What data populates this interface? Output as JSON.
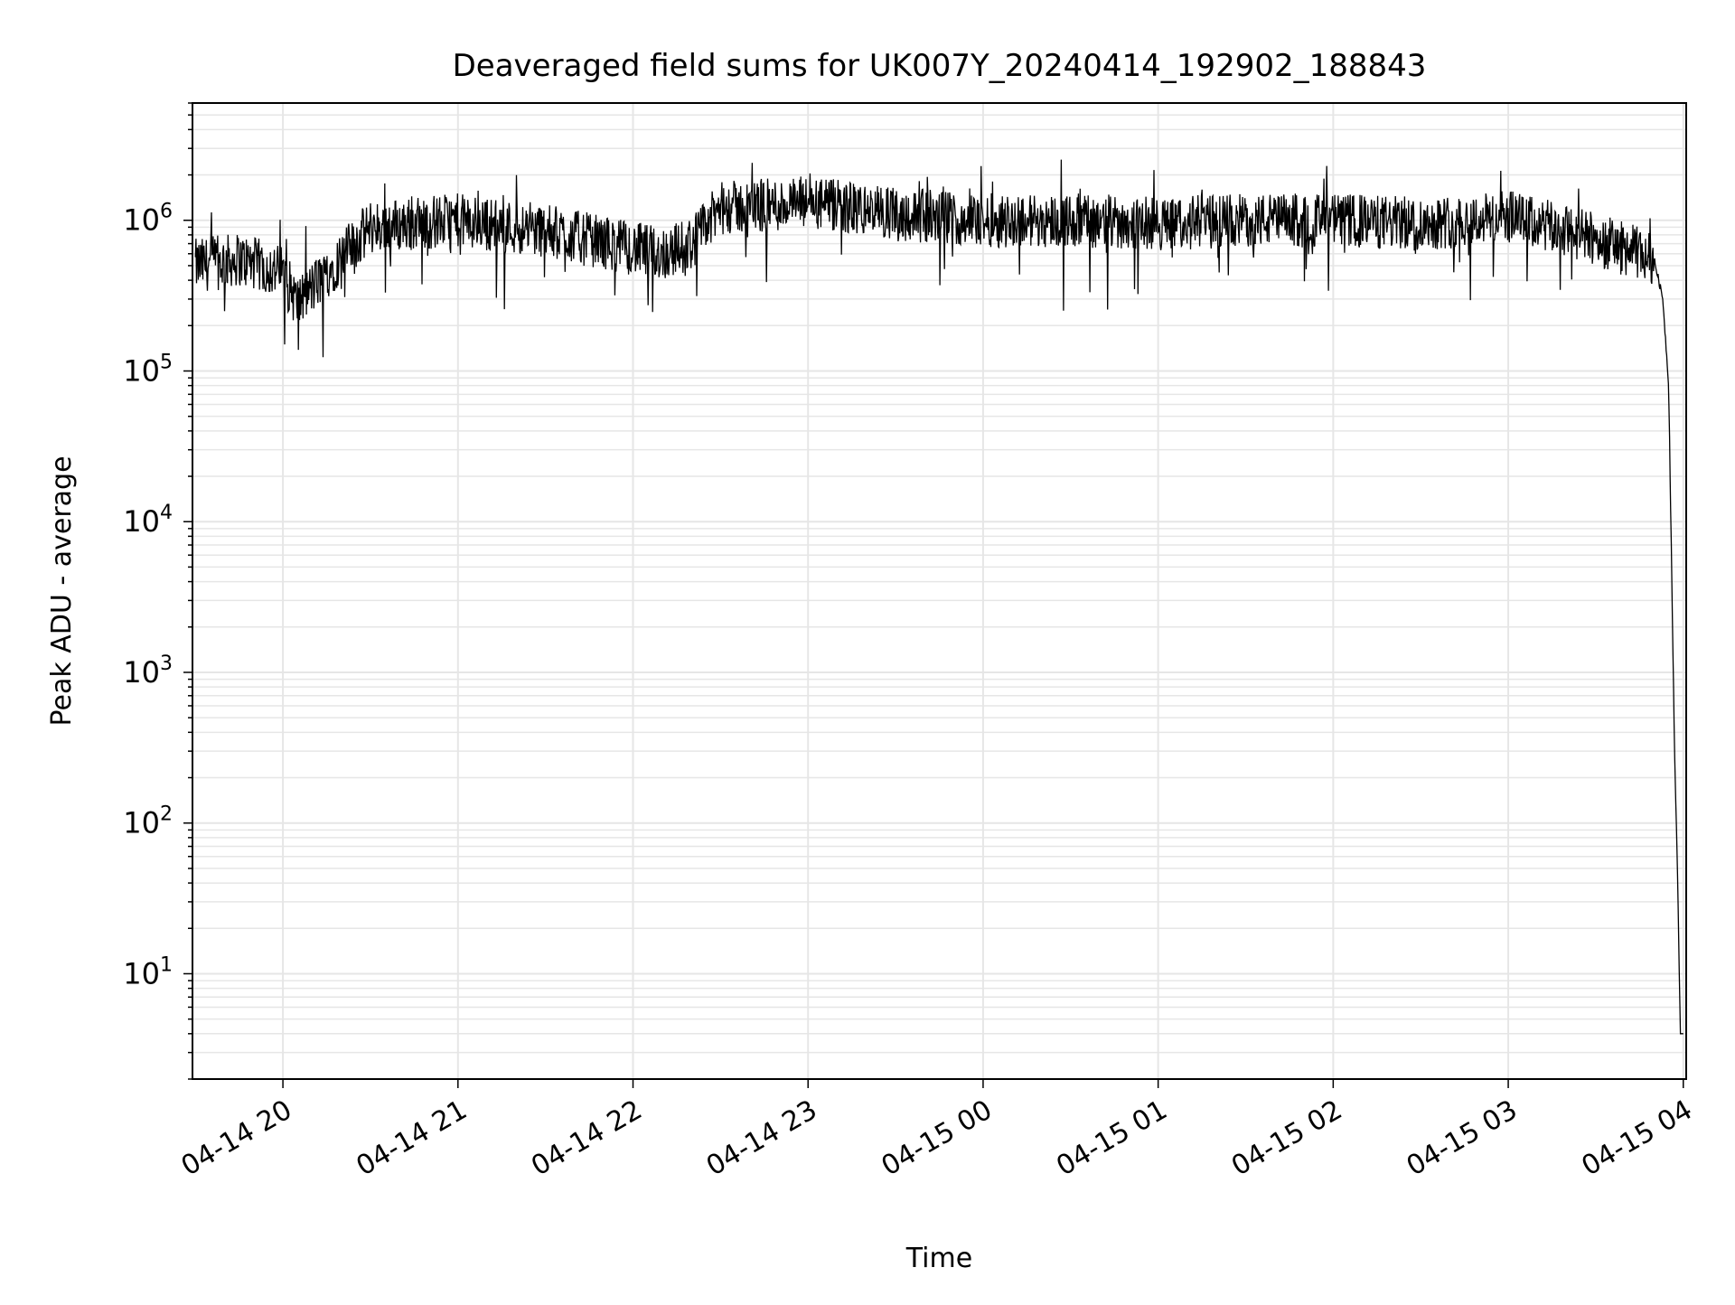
{
  "chart_data": {
    "type": "line",
    "title": "Deaveraged field sums for UK007Y_20240414_192902_188843",
    "xlabel": "Time",
    "ylabel": "Peak ADU - average",
    "yscale": "log",
    "ylim": [
      2,
      6000000
    ],
    "xlim": [
      "2024-04-14 19:29",
      "2024-04-15 04:01"
    ],
    "x_ticks": [
      "04-14 20",
      "04-14 21",
      "04-14 22",
      "04-14 23",
      "04-15 00",
      "04-15 01",
      "04-15 02",
      "04-15 03",
      "04-15 04"
    ],
    "y_ticks": [
      {
        "value": 10,
        "base": "10",
        "exp": "1"
      },
      {
        "value": 100,
        "base": "10",
        "exp": "2"
      },
      {
        "value": 1000,
        "base": "10",
        "exp": "3"
      },
      {
        "value": 10000,
        "base": "10",
        "exp": "4"
      },
      {
        "value": 100000,
        "base": "10",
        "exp": "5"
      },
      {
        "value": 1000000,
        "base": "10",
        "exp": "6"
      }
    ],
    "grid": true,
    "line_color": "#000000",
    "series": [
      {
        "x": [
          "2024-04-14 19:30",
          "2024-04-14 19:45",
          "2024-04-14 20:00",
          "2024-04-14 20:05",
          "2024-04-14 20:15",
          "2024-04-14 20:30",
          "2024-04-14 21:00",
          "2024-04-14 21:30",
          "2024-04-14 22:00",
          "2024-04-14 22:10",
          "2024-04-14 22:20",
          "2024-04-14 22:30",
          "2024-04-14 23:00",
          "2024-04-14 23:30",
          "2024-04-15 00:00",
          "2024-04-15 00:30",
          "2024-04-15 01:00",
          "2024-04-15 01:30",
          "2024-04-15 02:00",
          "2024-04-15 02:30",
          "2024-04-15 03:00",
          "2024-04-15 03:30",
          "2024-04-15 03:45",
          "2024-04-15 03:50",
          "2024-04-15 03:53",
          "2024-04-15 03:55",
          "2024-04-15 03:56",
          "2024-04-15 03:57",
          "2024-04-15 03:58",
          "2024-04-15 03:59",
          "2024-04-15 04:00"
        ],
        "y": [
          500000,
          550000,
          450000,
          280000,
          450000,
          900000,
          1000000,
          850000,
          650000,
          600000,
          700000,
          1200000,
          1300000,
          1100000,
          1000000,
          1000000,
          950000,
          1000000,
          1000000,
          950000,
          1050000,
          750000,
          600000,
          550000,
          300000,
          80000,
          5000,
          300,
          50,
          4,
          4
        ]
      }
    ]
  }
}
